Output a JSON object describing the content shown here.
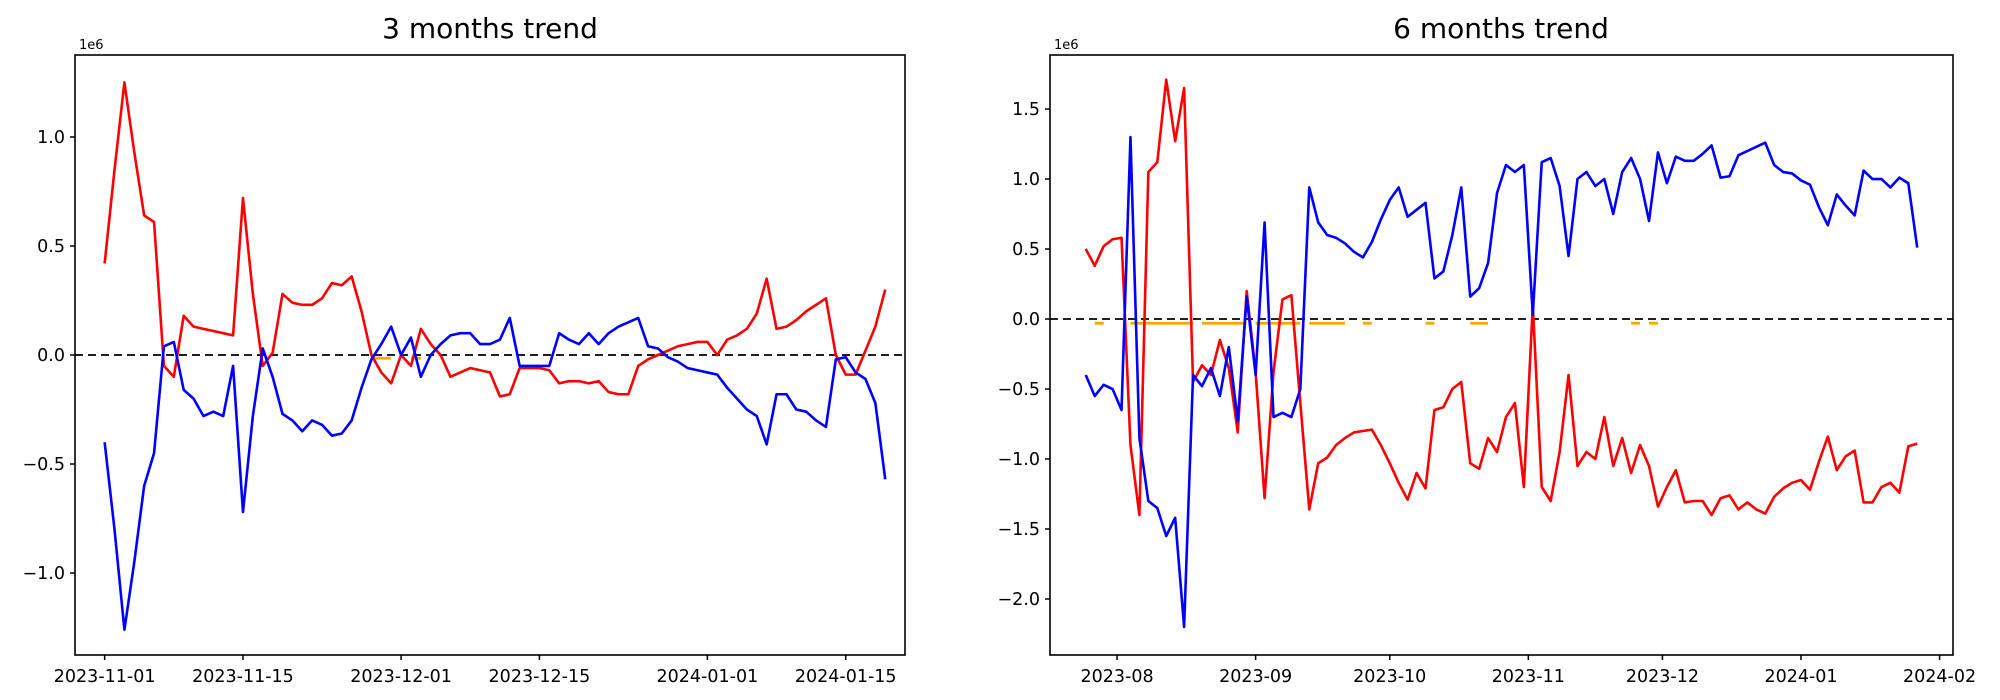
{
  "page": {
    "background": "#ffffff"
  },
  "chart_data": {
    "note": "see charts array"
  },
  "charts": [
    {
      "id": "three-month-trend",
      "type": "line",
      "title": "3 months trend",
      "offset_label": "1e6",
      "value_unit": "1e6",
      "x_start_date": "2023-11-01",
      "x_step_days": 1,
      "xlim_days": [
        -3,
        81
      ],
      "ylim": [
        -1.376,
        1.376
      ],
      "grid": false,
      "legend": "none",
      "x_ticks": [
        {
          "day": 0,
          "label": "2023-11-01"
        },
        {
          "day": 14,
          "label": "2023-11-15"
        },
        {
          "day": 30,
          "label": "2023-12-01"
        },
        {
          "day": 44,
          "label": "2023-12-15"
        },
        {
          "day": 61,
          "label": "2024-01-01"
        },
        {
          "day": 75,
          "label": "2024-01-15"
        }
      ],
      "y_ticks": [
        {
          "v": 1.0,
          "label": "1.0"
        },
        {
          "v": 0.5,
          "label": "0.5"
        },
        {
          "v": 0.0,
          "label": "0.0"
        },
        {
          "v": -0.5,
          "label": "−0.5"
        },
        {
          "v": -1.0,
          "label": "−1.0"
        }
      ],
      "zero_line": {
        "value": 0,
        "style": "dashed",
        "color": "#000000"
      },
      "series": [
        {
          "name": "red",
          "color": "#ff0000",
          "values": [
            0.42,
            0.85,
            1.25,
            0.93,
            0.64,
            0.61,
            -0.05,
            -0.1,
            0.18,
            0.13,
            0.12,
            0.11,
            0.1,
            0.09,
            0.72,
            0.28,
            -0.05,
            0.01,
            0.28,
            0.24,
            0.23,
            0.23,
            0.26,
            0.33,
            0.32,
            0.36,
            0.2,
            0.0,
            -0.08,
            -0.13,
            0.0,
            -0.05,
            0.12,
            0.05,
            0.0,
            -0.1,
            -0.08,
            -0.06,
            -0.07,
            -0.08,
            -0.19,
            -0.18,
            -0.06,
            -0.06,
            -0.06,
            -0.07,
            -0.13,
            -0.12,
            -0.12,
            -0.13,
            -0.12,
            -0.17,
            -0.18,
            -0.18,
            -0.05,
            -0.02,
            0.0,
            0.02,
            0.04,
            0.05,
            0.06,
            0.06,
            0.0,
            0.07,
            0.09,
            0.12,
            0.19,
            0.35,
            0.12,
            0.13,
            0.16,
            0.2,
            0.23,
            0.26,
            0.0,
            -0.09,
            -0.09,
            0.02,
            0.13,
            0.3
          ]
        },
        {
          "name": "blue",
          "color": "#0000ff",
          "values": [
            -0.4,
            -0.8,
            -1.26,
            -0.95,
            -0.6,
            -0.45,
            0.04,
            0.06,
            -0.16,
            -0.2,
            -0.28,
            -0.26,
            -0.28,
            -0.05,
            -0.72,
            -0.28,
            0.03,
            -0.1,
            -0.27,
            -0.3,
            -0.35,
            -0.3,
            -0.32,
            -0.37,
            -0.36,
            -0.3,
            -0.15,
            -0.02,
            0.05,
            0.13,
            0.0,
            0.08,
            -0.1,
            0.0,
            0.05,
            0.09,
            0.1,
            0.1,
            0.05,
            0.05,
            0.07,
            0.17,
            -0.05,
            -0.05,
            -0.05,
            -0.05,
            0.1,
            0.07,
            0.05,
            0.1,
            0.05,
            0.1,
            0.13,
            0.15,
            0.17,
            0.04,
            0.03,
            -0.01,
            -0.03,
            -0.06,
            -0.07,
            -0.08,
            -0.09,
            -0.15,
            -0.2,
            -0.25,
            -0.28,
            -0.41,
            -0.18,
            -0.18,
            -0.25,
            -0.26,
            -0.3,
            -0.33,
            -0.02,
            -0.01,
            -0.08,
            -0.11,
            -0.22,
            -0.57
          ]
        },
        {
          "name": "orange",
          "color": "#ffa500",
          "value": -0.015,
          "segments": [
            [
              27,
              29
            ],
            [
              31,
              32
            ]
          ]
        }
      ]
    },
    {
      "id": "six-month-trend",
      "type": "line",
      "title": "6 months trend",
      "offset_label": "1e6",
      "value_unit": "1e6",
      "x_start_date": "2023-07-25",
      "x_step_days": 2,
      "xlim_days": [
        -8,
        194
      ],
      "ylim": [
        -2.4,
        1.886
      ],
      "grid": false,
      "legend": "none",
      "x_ticks": [
        {
          "day": 7,
          "label": "2023-08"
        },
        {
          "day": 38,
          "label": "2023-09"
        },
        {
          "day": 68,
          "label": "2023-10"
        },
        {
          "day": 99,
          "label": "2023-11"
        },
        {
          "day": 129,
          "label": "2023-12"
        },
        {
          "day": 160,
          "label": "2024-01"
        },
        {
          "day": 191,
          "label": "2024-02"
        }
      ],
      "y_ticks": [
        {
          "v": 1.5,
          "label": "1.5"
        },
        {
          "v": 1.0,
          "label": "1.0"
        },
        {
          "v": 0.5,
          "label": "0.5"
        },
        {
          "v": 0.0,
          "label": "0.0"
        },
        {
          "v": -0.5,
          "label": "−0.5"
        },
        {
          "v": -1.0,
          "label": "−1.0"
        },
        {
          "v": -1.5,
          "label": "−1.5"
        },
        {
          "v": -2.0,
          "label": "−2.0"
        }
      ],
      "zero_line": {
        "value": 0,
        "style": "dashed",
        "color": "#000000"
      },
      "series": [
        {
          "name": "red",
          "color": "#ff0000",
          "values": [
            0.5,
            0.38,
            0.52,
            0.57,
            0.58,
            -0.9,
            -1.4,
            1.05,
            1.12,
            1.71,
            1.27,
            1.65,
            -0.45,
            -0.33,
            -0.4,
            -0.15,
            -0.35,
            -0.81,
            0.2,
            -0.38,
            -1.28,
            -0.38,
            0.14,
            0.17,
            -0.6,
            -1.36,
            -1.03,
            -0.99,
            -0.9,
            -0.85,
            -0.81,
            -0.8,
            -0.79,
            -0.9,
            -1.03,
            -1.17,
            -1.29,
            -1.1,
            -1.21,
            -0.65,
            -0.63,
            -0.5,
            -0.45,
            -1.03,
            -1.07,
            -0.85,
            -0.95,
            -0.7,
            -0.6,
            -1.2,
            0.1,
            -1.2,
            -1.3,
            -0.95,
            -0.4,
            -1.05,
            -0.95,
            -1.0,
            -0.7,
            -1.05,
            -0.85,
            -1.1,
            -0.9,
            -1.05,
            -1.34,
            -1.2,
            -1.08,
            -1.31,
            -1.3,
            -1.3,
            -1.4,
            -1.28,
            -1.26,
            -1.36,
            -1.31,
            -1.36,
            -1.39,
            -1.27,
            -1.21,
            -1.17,
            -1.15,
            -1.22,
            -1.02,
            -0.84,
            -1.08,
            -0.98,
            -0.94,
            -1.31,
            -1.31,
            -1.2,
            -1.17,
            -1.24,
            -0.91,
            -0.89
          ]
        },
        {
          "name": "blue",
          "color": "#0000ff",
          "values": [
            -0.4,
            -0.55,
            -0.47,
            -0.5,
            -0.65,
            1.3,
            -0.85,
            -1.3,
            -1.35,
            -1.55,
            -1.42,
            -2.2,
            -0.4,
            -0.48,
            -0.35,
            -0.55,
            -0.2,
            -0.73,
            0.16,
            -0.4,
            0.69,
            -0.7,
            -0.67,
            -0.7,
            -0.5,
            0.94,
            0.69,
            0.6,
            0.58,
            0.54,
            0.48,
            0.44,
            0.55,
            0.71,
            0.85,
            0.94,
            0.73,
            0.78,
            0.83,
            0.29,
            0.34,
            0.6,
            0.94,
            0.16,
            0.22,
            0.4,
            0.9,
            1.1,
            1.05,
            1.1,
            0.03,
            1.12,
            1.15,
            0.95,
            0.45,
            1.0,
            1.05,
            0.95,
            1.0,
            0.75,
            1.05,
            1.15,
            1.0,
            0.7,
            1.19,
            0.97,
            1.16,
            1.13,
            1.13,
            1.18,
            1.24,
            1.01,
            1.02,
            1.17,
            1.2,
            1.23,
            1.26,
            1.1,
            1.05,
            1.04,
            0.99,
            0.96,
            0.8,
            0.67,
            0.89,
            0.81,
            0.74,
            1.06,
            1.0,
            1.0,
            0.94,
            1.01,
            0.97,
            0.51
          ]
        },
        {
          "name": "orange",
          "color": "#ffa500",
          "value": -0.03,
          "segments": [
            [
              1,
              2
            ],
            [
              5,
              12
            ],
            [
              13,
              18
            ],
            [
              19,
              24
            ],
            [
              25,
              29
            ],
            [
              31,
              32
            ],
            [
              38,
              39
            ],
            [
              43,
              45
            ],
            [
              61,
              62
            ],
            [
              63,
              64
            ]
          ]
        }
      ]
    }
  ]
}
